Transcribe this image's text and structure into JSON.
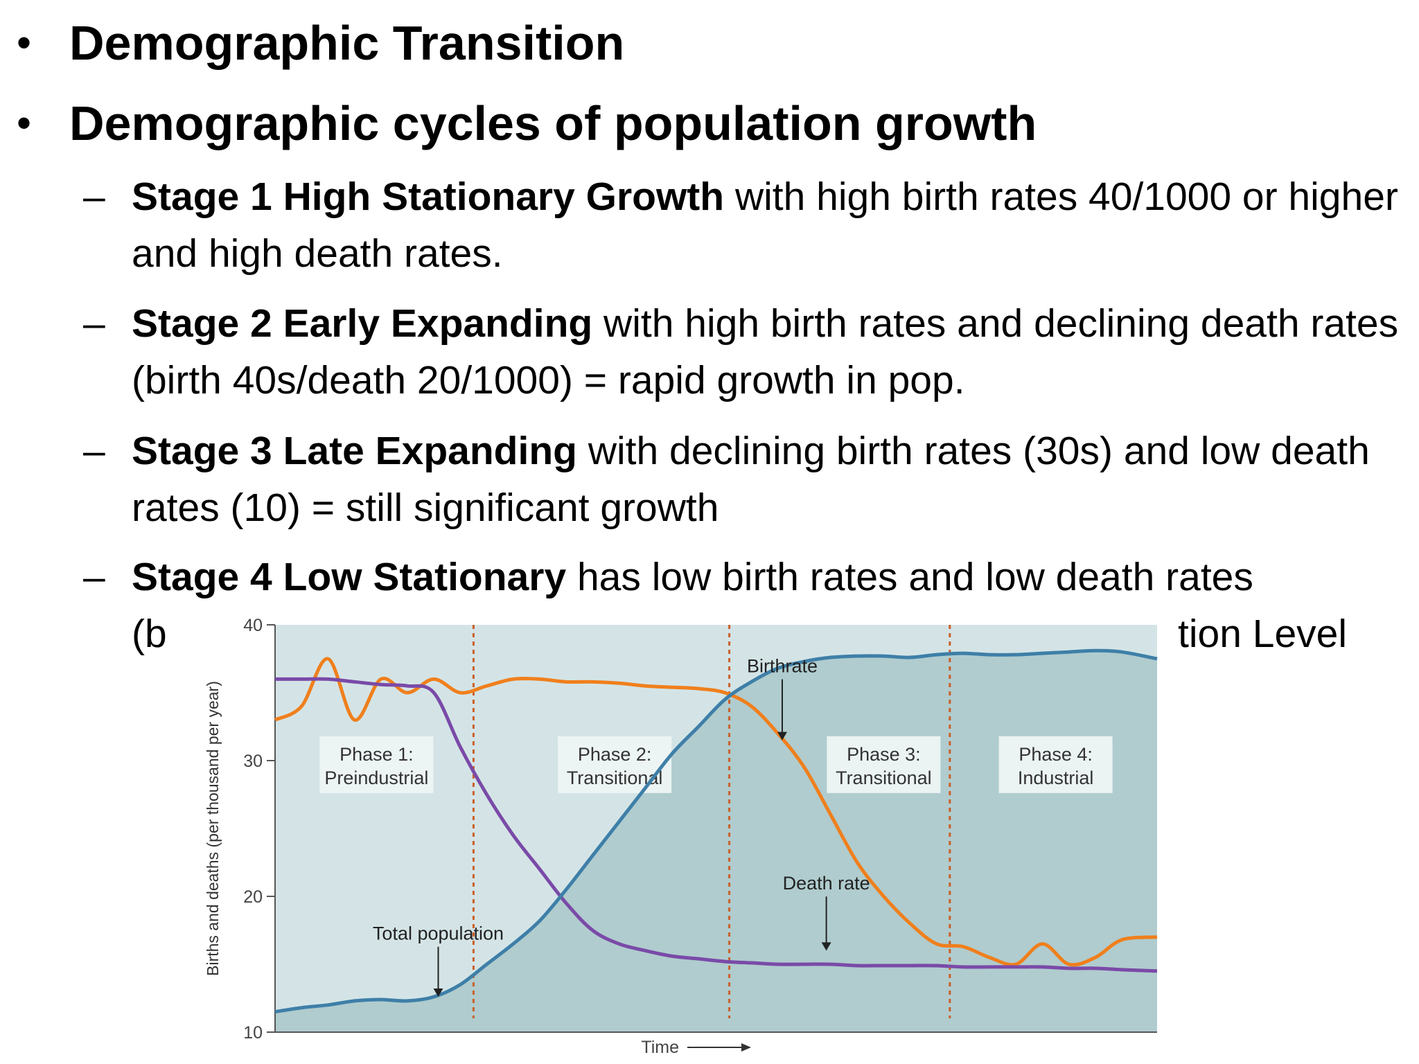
{
  "bullets": [
    {
      "text": "Demographic Transition"
    },
    {
      "text": "Demographic cycles of population growth"
    }
  ],
  "subbullets": [
    {
      "bold": "Stage 1 High Stationary Growth",
      "rest": " with high birth rates 40/1000 or higher and high death rates."
    },
    {
      "bold": "Stage 2 Early Expanding",
      "rest": " with high birth rates and declining death rates (birth 40s/death 20/1000) = rapid growth in pop."
    },
    {
      "bold": "Stage 3 Late Expanding",
      "rest": " with declining birth rates (30s) and low death rates (10) = still significant growth"
    },
    {
      "bold": "Stage 4 Low Stationary",
      "rest": " has low birth rates and low death rates"
    }
  ],
  "partial_line": {
    "left": "(b",
    "right": "tion Level"
  },
  "chart_data": {
    "type": "line",
    "ylabel": "Births and deaths (per thousand per year)",
    "xlabel": "Time",
    "ylim": [
      10,
      40
    ],
    "yticks": [
      "10",
      "20",
      "30",
      "40"
    ],
    "x": [
      0,
      3,
      6,
      9,
      12,
      15,
      18,
      21,
      24,
      27,
      30,
      33,
      36,
      39,
      42,
      45,
      48,
      51,
      54,
      57,
      60,
      63,
      66,
      69,
      72,
      75,
      78,
      81,
      84,
      87,
      90,
      93,
      96,
      100
    ],
    "series": [
      {
        "name": "Birthrate",
        "color": "#f07f1c",
        "values": [
          33,
          34,
          37.5,
          33,
          36,
          35,
          36,
          35,
          35.5,
          36,
          36,
          35.8,
          35.8,
          35.7,
          35.5,
          35.4,
          35.3,
          35,
          34,
          32,
          29.5,
          26,
          22.5,
          20,
          18,
          16.5,
          16.3,
          15.5,
          15,
          16.5,
          15,
          15.5,
          16.8,
          17
        ]
      },
      {
        "name": "Death rate",
        "color": "#7a4aa8",
        "values": [
          36,
          36,
          36,
          35.8,
          35.6,
          35.5,
          35,
          31,
          27.5,
          24.5,
          22,
          19.5,
          17.5,
          16.5,
          16,
          15.6,
          15.4,
          15.2,
          15.1,
          15,
          15,
          15,
          14.9,
          14.9,
          14.9,
          14.9,
          14.8,
          14.8,
          14.8,
          14.8,
          14.7,
          14.7,
          14.6,
          14.5
        ]
      },
      {
        "name": "Total population",
        "color": "#3e7fa8",
        "values": [
          11.5,
          11.8,
          12,
          12.3,
          12.4,
          12.3,
          12.6,
          13.5,
          15,
          16.5,
          18.2,
          20.5,
          23,
          25.5,
          28,
          30.5,
          32.5,
          34.5,
          35.8,
          36.8,
          37.3,
          37.6,
          37.7,
          37.7,
          37.6,
          37.8,
          37.9,
          37.8,
          37.8,
          37.9,
          38,
          38.1,
          38,
          37.5
        ]
      }
    ],
    "phase_boundaries": [
      22.5,
      51.5,
      76.5
    ],
    "phases": [
      {
        "line1": "Phase 1:",
        "line2": "Preindustrial"
      },
      {
        "line1": "Phase 2:",
        "line2": "Transitional"
      },
      {
        "line1": "Phase 3:",
        "line2": "Transitional"
      },
      {
        "line1": "Phase 4:",
        "line2": "Industrial"
      }
    ],
    "annotations": [
      {
        "text": "Birthrate",
        "x": 57.5,
        "y": 36.5,
        "arrow_to": 31.5
      },
      {
        "text": "Death rate",
        "x": 62.5,
        "y": 20.5,
        "arrow_to": 16
      },
      {
        "text": "Total population",
        "x": 18.5,
        "y": 16.8,
        "arrow_to": 12.6
      }
    ],
    "colors": {
      "plot_bg": "#d4e4e6",
      "fill": "#a9c8c9",
      "phase_line": "#c9602a"
    }
  }
}
